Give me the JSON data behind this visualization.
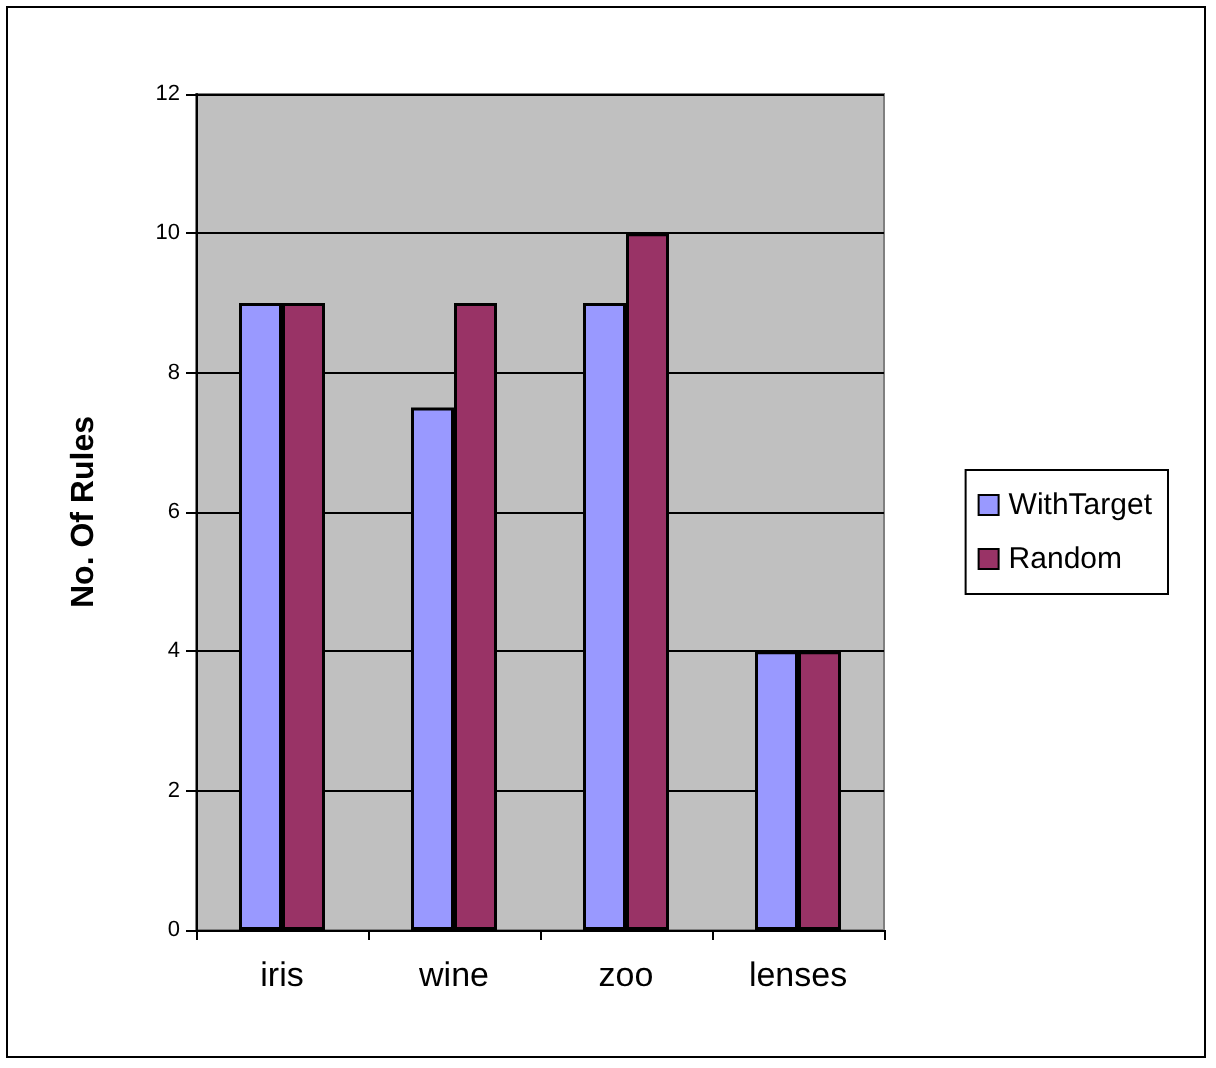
{
  "chart_data": {
    "type": "bar",
    "ylabel": "No. Of Rules",
    "categories": [
      "iris",
      "wine",
      "zoo",
      "lenses"
    ],
    "series": [
      {
        "name": "WithTarget",
        "color": "#9999ff",
        "values": [
          9,
          7.5,
          9,
          4
        ]
      },
      {
        "name": "Random",
        "color": "#993366",
        "values": [
          9,
          9,
          10,
          4
        ]
      }
    ],
    "ylim": [
      0,
      12
    ],
    "yticks": [
      0,
      2,
      4,
      6,
      8,
      10,
      12
    ],
    "grid": "y",
    "legend": "right"
  }
}
